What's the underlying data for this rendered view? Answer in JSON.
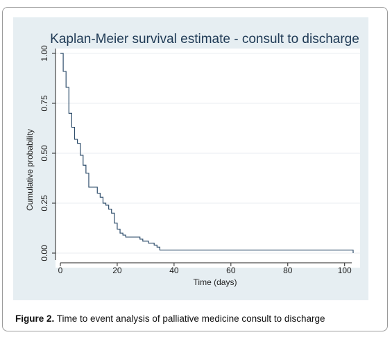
{
  "chart_data": {
    "type": "line",
    "title": "Kaplan-Meier survival estimate - consult to discharge",
    "xlabel": "Time (days)",
    "ylabel": "Cumulative probability",
    "xlim": [
      0,
      103
    ],
    "ylim": [
      0,
      1
    ],
    "x_ticks": [
      "0",
      "20",
      "40",
      "60",
      "80",
      "100"
    ],
    "y_ticks": [
      "0.00",
      "0.25",
      "0.50",
      "0.75",
      "1.00"
    ],
    "grid": true,
    "line_color": "#2e4d6b",
    "series": [
      {
        "step": true,
        "points": [
          {
            "x": 0,
            "y": 1.0
          },
          {
            "x": 1,
            "y": 0.91
          },
          {
            "x": 2,
            "y": 0.83
          },
          {
            "x": 3,
            "y": 0.7
          },
          {
            "x": 4,
            "y": 0.63
          },
          {
            "x": 5,
            "y": 0.57
          },
          {
            "x": 6,
            "y": 0.55
          },
          {
            "x": 7,
            "y": 0.49
          },
          {
            "x": 8,
            "y": 0.44
          },
          {
            "x": 9,
            "y": 0.4
          },
          {
            "x": 10,
            "y": 0.33
          },
          {
            "x": 13,
            "y": 0.3
          },
          {
            "x": 14,
            "y": 0.28
          },
          {
            "x": 15,
            "y": 0.25
          },
          {
            "x": 16,
            "y": 0.24
          },
          {
            "x": 17,
            "y": 0.22
          },
          {
            "x": 18,
            "y": 0.2
          },
          {
            "x": 19,
            "y": 0.15
          },
          {
            "x": 20,
            "y": 0.12
          },
          {
            "x": 21,
            "y": 0.1
          },
          {
            "x": 22,
            "y": 0.09
          },
          {
            "x": 23,
            "y": 0.08
          },
          {
            "x": 28,
            "y": 0.07
          },
          {
            "x": 29,
            "y": 0.06
          },
          {
            "x": 31,
            "y": 0.05
          },
          {
            "x": 33,
            "y": 0.04
          },
          {
            "x": 34,
            "y": 0.03
          },
          {
            "x": 35,
            "y": 0.015
          },
          {
            "x": 102.5,
            "y": 0.015
          },
          {
            "x": 103,
            "y": 0.0
          }
        ]
      }
    ]
  },
  "caption": {
    "label": "Figure 2.",
    "text": " Time to event analysis of palliative medicine consult to discharge"
  }
}
